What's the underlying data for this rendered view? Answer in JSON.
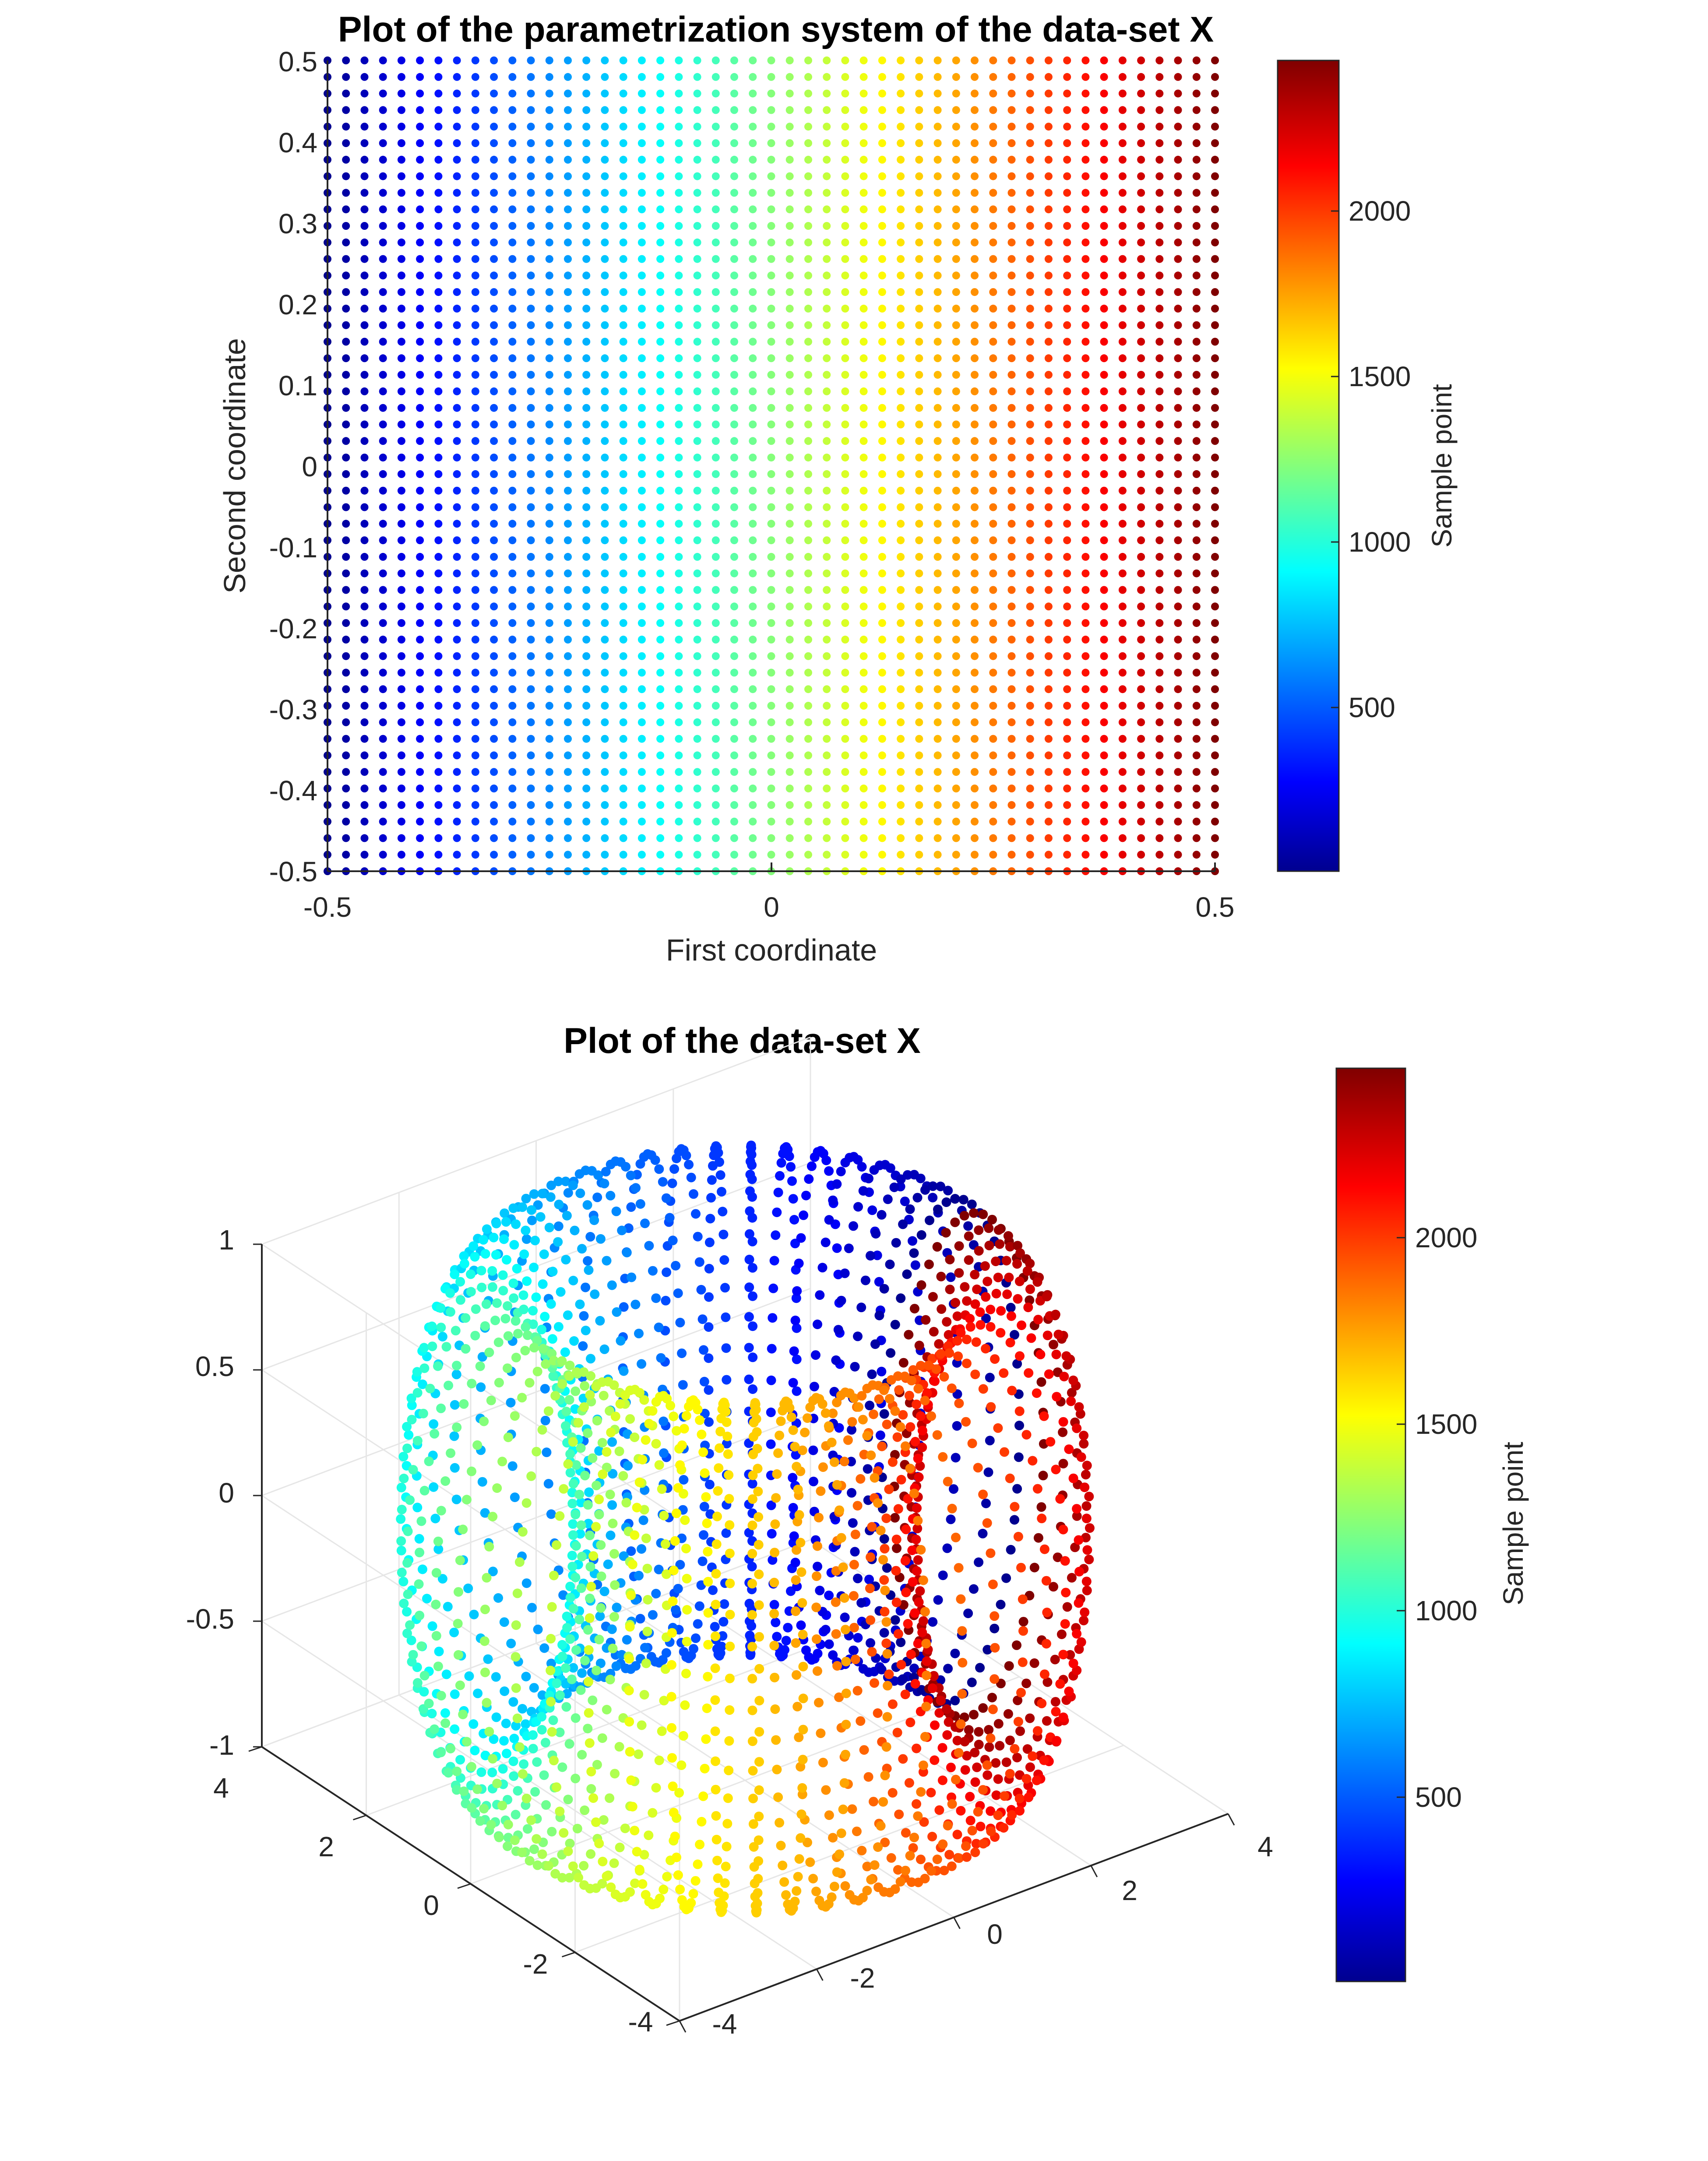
{
  "chart_data": [
    {
      "type": "scatter",
      "title": "Plot of the parametrization system of the data-set X",
      "xlabel": "First coordinate",
      "ylabel": "Second coordinate",
      "xlim": [
        -0.5,
        0.5
      ],
      "ylim": [
        -0.5,
        0.5
      ],
      "x_ticks": [
        "-0.5",
        "0",
        "0.5"
      ],
      "y_ticks": [
        "0.5",
        "0.4",
        "0.3",
        "0.2",
        "0.1",
        "0",
        "-0.1",
        "-0.2",
        "-0.3",
        "-0.4",
        "-0.5"
      ],
      "grid": false,
      "grid_size": {
        "columns": 49,
        "rows": 50
      },
      "point_count": 2450,
      "colormap": "jet",
      "color_by": "sample index (increasing with first coordinate)",
      "colorbar": {
        "label": "Sample point",
        "range": [
          1,
          2450
        ],
        "ticks": [
          "2000",
          "1500",
          "1000",
          "500"
        ]
      }
    },
    {
      "type": "scatter",
      "subtype": "scatter3d-torus",
      "title": "Plot of the data-set X",
      "xlim": [
        -4,
        4
      ],
      "ylim": [
        -4,
        4
      ],
      "zlim": [
        -1,
        1
      ],
      "x_ticks": [
        "-4",
        "-2",
        "0",
        "2",
        "4"
      ],
      "y_ticks": [
        "4",
        "2",
        "0",
        "-2",
        "-4"
      ],
      "z_ticks": [
        "1",
        "0.5",
        "0",
        "-0.5",
        "-1"
      ],
      "grid": true,
      "torus": {
        "major_radius": 3,
        "minor_radius": 1
      },
      "point_count": 2450,
      "colormap": "jet",
      "colorbar": {
        "label": "Sample point",
        "range": [
          1,
          2450
        ],
        "ticks": [
          "2000",
          "1500",
          "1000",
          "500"
        ]
      }
    }
  ],
  "colors": {
    "jet_stops": [
      "#00008f",
      "#0000ff",
      "#00ffff",
      "#ffff00",
      "#ff0000",
      "#800000"
    ],
    "axis": "#262626",
    "grid": "#e6e6e6"
  }
}
